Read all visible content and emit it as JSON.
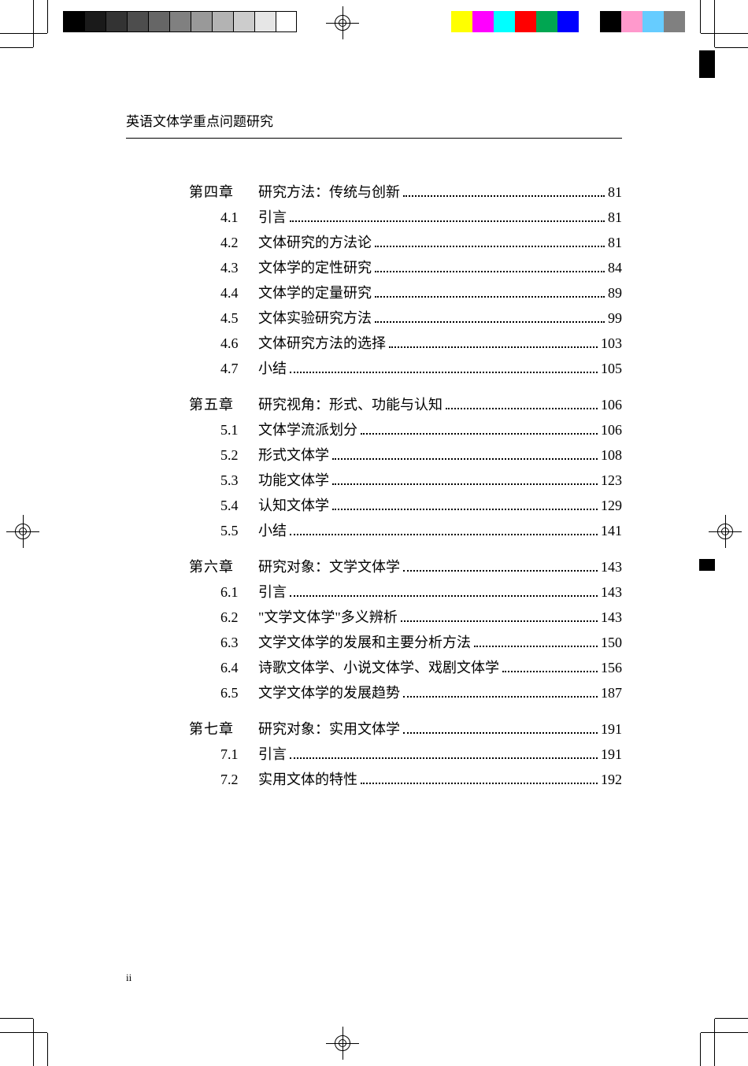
{
  "running_head": "英语文体学重点问题研究",
  "page_number": "ii",
  "gray_bar_colors": [
    "#000000",
    "#1a1a1a",
    "#333333",
    "#4d4d4d",
    "#666666",
    "#808080",
    "#999999",
    "#b3b3b3",
    "#cccccc",
    "#e6e6e6",
    "#ffffff"
  ],
  "gray_bar_stroke": "#000000",
  "color_bar_colors": [
    "#ffff00",
    "#ff00ff",
    "#00ffff",
    "#ff0000",
    "#00a651",
    "#0000ff",
    "#ffffff",
    "#000000",
    "#ff99cc",
    "#66ccff",
    "#808080"
  ],
  "chapters": [
    {
      "num": "第四章",
      "title": "研究方法：传统与创新 ",
      "page": "81",
      "sections": [
        {
          "num": "4.1",
          "title": "引言",
          "page": "81"
        },
        {
          "num": "4.2",
          "title": "文体研究的方法论",
          "page": "81"
        },
        {
          "num": "4.3",
          "title": "文体学的定性研究",
          "page": "84"
        },
        {
          "num": "4.4",
          "title": "文体学的定量研究",
          "page": "89"
        },
        {
          "num": "4.5",
          "title": "文体实验研究方法",
          "page": "99"
        },
        {
          "num": "4.6",
          "title": "文体研究方法的选择",
          "page": "103"
        },
        {
          "num": "4.7",
          "title": "小结",
          "page": "105"
        }
      ]
    },
    {
      "num": "第五章",
      "title": "研究视角：形式、功能与认知 ",
      "page": "106",
      "sections": [
        {
          "num": "5.1",
          "title": "文体学流派划分",
          "page": "106"
        },
        {
          "num": "5.2",
          "title": "形式文体学",
          "page": "108"
        },
        {
          "num": "5.3",
          "title": "功能文体学",
          "page": "123"
        },
        {
          "num": "5.4",
          "title": "认知文体学",
          "page": "129"
        },
        {
          "num": "5.5",
          "title": "小结",
          "page": "141"
        }
      ]
    },
    {
      "num": "第六章",
      "title": "研究对象：文学文体学",
      "page": "143",
      "sections": [
        {
          "num": "6.1",
          "title": "引言",
          "page": "143"
        },
        {
          "num": "6.2",
          "title": "\"文学文体学\"多义辨析",
          "page": "143"
        },
        {
          "num": "6.3",
          "title": "文学文体学的发展和主要分析方法",
          "page": "150"
        },
        {
          "num": "6.4",
          "title": "诗歌文体学、小说文体学、戏剧文体学",
          "page": "156"
        },
        {
          "num": "6.5",
          "title": "文学文体学的发展趋势",
          "page": "187"
        }
      ]
    },
    {
      "num": "第七章",
      "title": "研究对象：实用文体学",
      "page": "191",
      "sections": [
        {
          "num": "7.1",
          "title": "引言",
          "page": "191"
        },
        {
          "num": "7.2",
          "title": "实用文体的特性",
          "page": "192"
        }
      ]
    }
  ]
}
